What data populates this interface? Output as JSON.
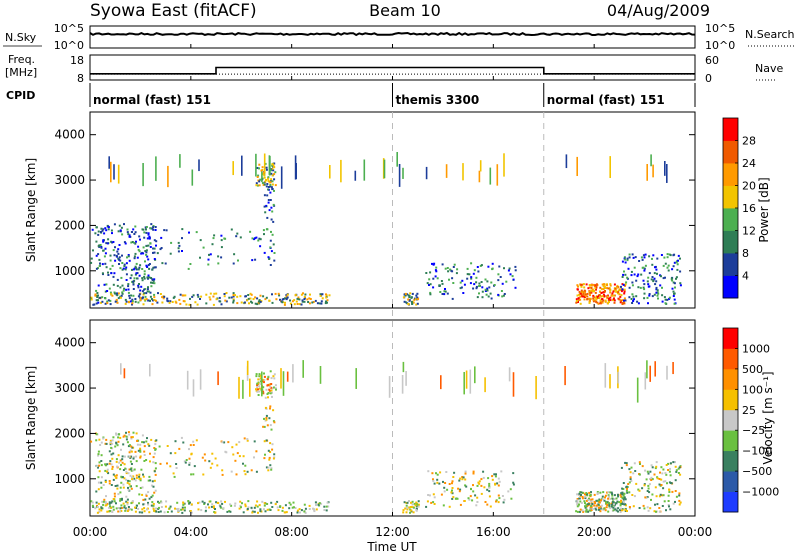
{
  "header": {
    "left": "Syowa East (fitACF)",
    "center": "Beam 10",
    "right": "04/Aug/2009"
  },
  "chart_data": [
    {
      "type": "line",
      "panel": "noise",
      "ylabel": "N.Sky",
      "right_label": "N.Search",
      "left_ticks": [
        "10^5",
        "10^0"
      ],
      "right_ticks": [
        "10^5",
        "10^0"
      ]
    },
    {
      "type": "line",
      "panel": "frequency",
      "ylabel_line1": "Freq.",
      "ylabel_line2": "[MHz]",
      "right_label": "Nave",
      "left_ticks": [
        "18",
        "8"
      ],
      "right_ticks": [
        "60",
        "0"
      ],
      "freq_segments": [
        {
          "x": [
            0,
            5
          ],
          "y": 10.5
        },
        {
          "x": [
            5,
            18
          ],
          "y": 13
        },
        {
          "x": [
            18,
            24
          ],
          "y": 10.5
        }
      ],
      "nave_level": 14
    },
    {
      "type": "table",
      "panel": "cpid",
      "label": "CPID",
      "segments": [
        {
          "name": "normal (fast) 151",
          "start": 0,
          "end": 12
        },
        {
          "name": "themis 3300",
          "start": 12,
          "end": 18
        },
        {
          "name": "normal (fast) 151",
          "start": 18,
          "end": 24
        }
      ]
    },
    {
      "type": "heatmap",
      "panel": "power",
      "xlabel": "Time UT",
      "ylabel": "Slant Range [km]",
      "ylim": [
        180,
        4500
      ],
      "yticks": [
        1000,
        2000,
        3000,
        4000
      ],
      "colorbar": {
        "label": "Power [dB]",
        "ticks": [
          "4",
          "8",
          "12",
          "16",
          "20",
          "24",
          "28"
        ],
        "colors": [
          "#0000ff",
          "#1c3d9a",
          "#2e7d55",
          "#4caf50",
          "#f2c400",
          "#ff9a00",
          "#f05a00",
          "#ff0000"
        ]
      }
    },
    {
      "type": "heatmap",
      "panel": "velocity",
      "xlabel": "Time UT",
      "ylabel": "Slant Range [km]",
      "ylim": [
        180,
        4500
      ],
      "yticks": [
        1000,
        2000,
        3000,
        4000
      ],
      "colorbar": {
        "label": "Velocity [m s⁻¹]",
        "ticks": [
          "1000",
          "500",
          "100",
          "25",
          "−25",
          "−100",
          "−500",
          "−1000"
        ],
        "colors": [
          "#1e3cff",
          "#2c5aa8",
          "#3a8060",
          "#6ac040",
          "#c8c8c8",
          "#f5c000",
          "#ff9000",
          "#ff5a00",
          "#ff0000"
        ]
      }
    }
  ],
  "x_axis": {
    "ticks": [
      "00:00",
      "04:00",
      "08:00",
      "12:00",
      "16:00",
      "20:00",
      "00:00"
    ],
    "label": "Time UT"
  }
}
